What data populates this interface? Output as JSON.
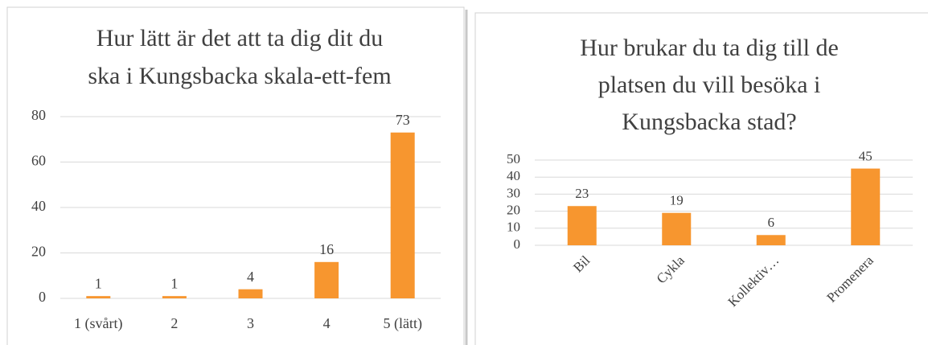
{
  "chart_data": [
    {
      "type": "bar",
      "title": [
        "Hur lätt är det att ta dig dit du",
        "ska i Kungsbacka skala-ett-fem"
      ],
      "categories": [
        "1 (svårt)",
        "2",
        "3",
        "4",
        "5 (lätt)"
      ],
      "values": [
        1,
        1,
        4,
        16,
        73
      ],
      "color": "#f7962f",
      "ylim": [
        0,
        80
      ],
      "yticks": [
        0,
        20,
        40,
        60,
        80
      ],
      "grid": true
    },
    {
      "type": "bar",
      "title": [
        "Hur brukar du ta dig till de",
        "platsen du vill besöka i",
        "Kungsbacka stad?"
      ],
      "categories": [
        "Bil",
        "Cykla",
        "Kollektiv…",
        "Promenera"
      ],
      "values": [
        23,
        19,
        6,
        45
      ],
      "color": "#f7962f",
      "ylim": [
        0,
        50
      ],
      "yticks": [
        0,
        10,
        20,
        30,
        40,
        50
      ],
      "grid": true
    }
  ]
}
